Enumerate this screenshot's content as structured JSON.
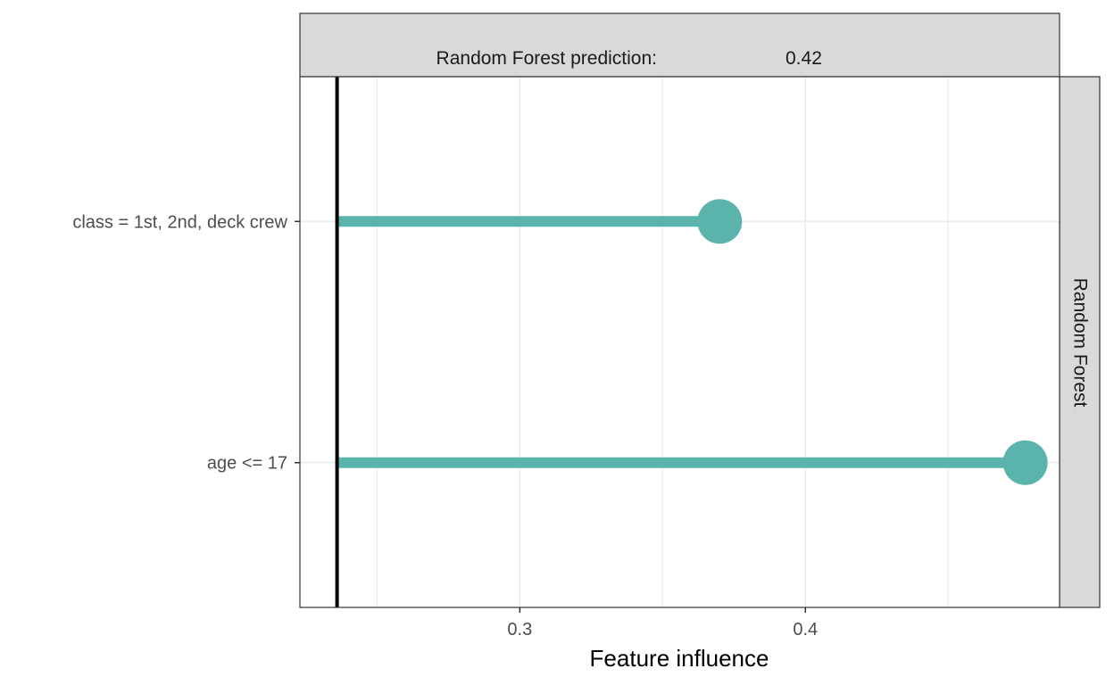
{
  "chart_data": {
    "type": "bar",
    "title": "",
    "facet_top": {
      "label": "Random Forest prediction:",
      "value": "0.42"
    },
    "facet_right": "Random Forest",
    "xlabel": "Feature influence",
    "ylabel": "",
    "baseline": 0.236,
    "xlim": [
      0.223,
      0.489
    ],
    "x_ticks": [
      0.3,
      0.4
    ],
    "x_tick_labels": [
      "0.3",
      "0.4"
    ],
    "x_minor_ticks": [
      0.25,
      0.35,
      0.45
    ],
    "categories": [
      "class = 1st, 2nd, deck crew",
      "age <= 17"
    ],
    "values": [
      0.37,
      0.477
    ],
    "grid": true,
    "colors": {
      "series": "#5ab4ac",
      "strip_fill": "#d9d9d9",
      "grid": "#ebebeb",
      "baseline": "#000000"
    }
  }
}
